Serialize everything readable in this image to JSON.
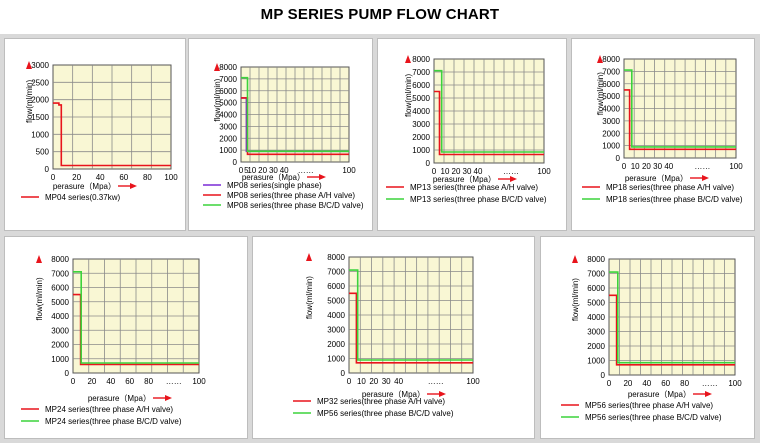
{
  "title": "MP SERIES PUMP FLOW CHART",
  "colors": {
    "plot_bg": "#f9f7d4",
    "grid": "#8a8a8a",
    "axis_arrow": "#e8141c",
    "red": "#e8141c",
    "green": "#3cd33c",
    "purple": "#7a2bd6"
  },
  "chart_data": [
    {
      "type": "line",
      "xlabel": "perasure（Mpa）",
      "ylabel": "flow(ml/min)",
      "xlim": [
        0,
        100
      ],
      "ylim": [
        0,
        3000
      ],
      "x_ticks": [
        "0",
        "20",
        "40",
        "60",
        "80",
        "100"
      ],
      "y_ticks": [
        "0",
        "500",
        "1000",
        "1500",
        "2000",
        "2500",
        "3000"
      ],
      "series": [
        {
          "name": "MP04 series(0.37kw)",
          "color": "red",
          "x": [
            0,
            5,
            5,
            7,
            7,
            100
          ],
          "y": [
            1900,
            1900,
            1850,
            1850,
            100,
            100
          ]
        }
      ]
    },
    {
      "type": "line",
      "xlabel": "perasure（Mpa）",
      "ylabel": "flow(ml/min)",
      "xlim": [
        0,
        100
      ],
      "ylim": [
        0,
        8000
      ],
      "x_ticks": [
        "0",
        "5",
        "10",
        "20",
        "30",
        "40",
        "……",
        "100"
      ],
      "y_ticks": [
        "0",
        "1000",
        "2000",
        "3000",
        "4000",
        "5000",
        "6000",
        "7000",
        "8000"
      ],
      "series": [
        {
          "name": "MP08 series(single phase)",
          "color": "purple",
          "x": [
            0,
            5,
            5,
            100
          ],
          "y": [
            5400,
            5400,
            900,
            900
          ]
        },
        {
          "name": "MP08 series(three phase A/H valve)",
          "color": "red",
          "x": [
            0,
            6,
            6,
            100
          ],
          "y": [
            5400,
            5400,
            650,
            650
          ]
        },
        {
          "name": "MP08 series(three phase B/C/D valve)",
          "color": "green",
          "x": [
            0,
            6,
            6,
            100
          ],
          "y": [
            7100,
            7100,
            900,
            900
          ]
        }
      ]
    },
    {
      "type": "line",
      "xlabel": "perasure（Mpa）",
      "ylabel": "flow(ml/min)",
      "xlim": [
        0,
        100
      ],
      "ylim": [
        0,
        8000
      ],
      "x_ticks": [
        "0",
        "10",
        "20",
        "30",
        "40",
        "……",
        "100"
      ],
      "y_ticks": [
        "0",
        "1000",
        "2000",
        "3000",
        "4000",
        "5000",
        "6000",
        "7000",
        "8000"
      ],
      "series": [
        {
          "name": "MP13 series(three phase A/H valve)",
          "color": "red",
          "x": [
            0,
            5,
            5,
            100
          ],
          "y": [
            5500,
            5500,
            650,
            650
          ]
        },
        {
          "name": "MP13 series(three phase B/C/D valve)",
          "color": "green",
          "x": [
            0,
            7,
            7,
            100
          ],
          "y": [
            7100,
            7100,
            850,
            850
          ]
        }
      ]
    },
    {
      "type": "line",
      "xlabel": "perasure（Mpa）",
      "ylabel": "flow(ml/min)",
      "xlim": [
        0,
        100
      ],
      "ylim": [
        0,
        8000
      ],
      "x_ticks": [
        "0",
        "10",
        "20",
        "30",
        "40",
        "……",
        "100"
      ],
      "y_ticks": [
        "0",
        "1000",
        "2000",
        "3000",
        "4000",
        "5000",
        "6000",
        "7000",
        "8000"
      ],
      "series": [
        {
          "name": "MP18 series(three phase A/H valve)",
          "color": "red",
          "x": [
            0,
            5,
            5,
            100
          ],
          "y": [
            5500,
            5500,
            700,
            700
          ]
        },
        {
          "name": "MP18 series(three phase B/C/D valve)",
          "color": "green",
          "x": [
            0,
            7,
            7,
            100
          ],
          "y": [
            7100,
            7100,
            900,
            900
          ]
        }
      ]
    },
    {
      "type": "line",
      "xlabel": "perasure（Mpa）",
      "ylabel": "flow(ml/min)",
      "xlim": [
        0,
        100
      ],
      "ylim": [
        0,
        8000
      ],
      "x_ticks": [
        "0",
        "20",
        "40",
        "60",
        "80",
        "……",
        "100"
      ],
      "y_ticks": [
        "0",
        "1000",
        "2000",
        "3000",
        "4000",
        "5000",
        "6000",
        "7000",
        "8000"
      ],
      "series": [
        {
          "name": "MP24 series(three phase A/H valve)",
          "color": "red",
          "x": [
            0,
            6,
            6,
            100
          ],
          "y": [
            5500,
            5500,
            600,
            600
          ]
        },
        {
          "name": "MP24 series(three phase B/C/D valve)",
          "color": "green",
          "x": [
            0,
            6.5,
            6.5,
            100
          ],
          "y": [
            7100,
            7100,
            700,
            700
          ]
        }
      ]
    },
    {
      "type": "line",
      "xlabel": "perasure（Mpa）",
      "ylabel": "flow(ml/min)",
      "xlim": [
        0,
        100
      ],
      "ylim": [
        0,
        8000
      ],
      "x_ticks": [
        "0",
        "10",
        "20",
        "30",
        "40",
        "……",
        "100"
      ],
      "y_ticks": [
        "0",
        "1000",
        "2000",
        "3000",
        "4000",
        "5000",
        "6000",
        "7000",
        "8000"
      ],
      "series": [
        {
          "name": "MP32 series(three phase A/H valve)",
          "color": "red",
          "x": [
            0,
            6,
            6,
            100
          ],
          "y": [
            5500,
            5500,
            700,
            700
          ]
        },
        {
          "name": "MP56 series(three phase B/C/D valve)",
          "color": "green",
          "x": [
            0,
            7,
            7,
            100
          ],
          "y": [
            7100,
            7100,
            900,
            900
          ]
        }
      ]
    },
    {
      "type": "line",
      "xlabel": "perasure（Mpa）",
      "ylabel": "flow(ml/min)",
      "xlim": [
        0,
        100
      ],
      "ylim": [
        0,
        8000
      ],
      "x_ticks": [
        "0",
        "20",
        "40",
        "60",
        "80",
        "……",
        "100"
      ],
      "y_ticks": [
        "0",
        "1000",
        "2000",
        "3000",
        "4000",
        "5000",
        "6000",
        "7000",
        "8000"
      ],
      "series": [
        {
          "name": "MP56 series(three phase A/H valve)",
          "color": "red",
          "x": [
            0,
            6,
            6,
            100
          ],
          "y": [
            5500,
            5500,
            700,
            700
          ]
        },
        {
          "name": "MP56 series(three phase B/C/D valve)",
          "color": "green",
          "x": [
            0,
            7,
            7,
            100
          ],
          "y": [
            7100,
            7100,
            850,
            850
          ]
        }
      ]
    }
  ]
}
